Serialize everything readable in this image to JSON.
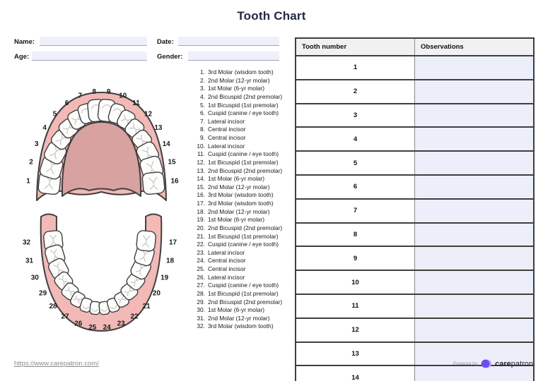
{
  "title": "Tooth Chart",
  "form": {
    "name_label": "Name:",
    "name_value": "",
    "date_label": "Date:",
    "date_value": "",
    "age_label": "Age:",
    "age_value": "",
    "gender_label": "Gender:",
    "gender_value": ""
  },
  "diagrams": {
    "upper_arch_numbers": [
      "1",
      "2",
      "3",
      "4",
      "5",
      "6",
      "7",
      "8",
      "9",
      "10",
      "11",
      "12",
      "13",
      "14",
      "15",
      "16"
    ],
    "lower_arch_numbers": [
      "32",
      "31",
      "30",
      "29",
      "28",
      "27",
      "26",
      "25",
      "24",
      "23",
      "22",
      "21",
      "20",
      "19",
      "18",
      "17"
    ]
  },
  "tooth_list": [
    {
      "num": "1.",
      "name": "3rd Molar (wisdom tooth)"
    },
    {
      "num": "2.",
      "name": "2nd Molar (12-yr molar)"
    },
    {
      "num": "3.",
      "name": "1st Molar (6-yr molar)"
    },
    {
      "num": "4.",
      "name": "2nd Bicuspid (2nd premolar)"
    },
    {
      "num": "5.",
      "name": "1st Bicuspid (1st premolar)"
    },
    {
      "num": "6.",
      "name": "Cuspid (canine / eye tooth)"
    },
    {
      "num": "7.",
      "name": "Lateral incisor"
    },
    {
      "num": "8.",
      "name": "Central incisor"
    },
    {
      "num": "9.",
      "name": "Central incisor"
    },
    {
      "num": "10.",
      "name": "Lateral incisor"
    },
    {
      "num": "11.",
      "name": "Cuspid (canine / eye tooth)"
    },
    {
      "num": "12.",
      "name": "1st Bicuspid (1st premolar)"
    },
    {
      "num": "13.",
      "name": "2nd Bicuspid (2nd premolar)"
    },
    {
      "num": "14.",
      "name": "1st Molar (6-yr molar)"
    },
    {
      "num": "15.",
      "name": "2nd Molar (12-yr molar)"
    },
    {
      "num": "16.",
      "name": "3rd Molar (wisdom tooth)"
    },
    {
      "num": "17.",
      "name": "3rd Molar (wisdom tooth)"
    },
    {
      "num": "18.",
      "name": "2nd Molar (12-yr molar)"
    },
    {
      "num": "19.",
      "name": "1st Molar (6-yr molar)"
    },
    {
      "num": "20.",
      "name": "2nd Bicuspid (2nd premolar)"
    },
    {
      "num": "21.",
      "name": "1st Bicuspid (1st premolar)"
    },
    {
      "num": "22.",
      "name": "Cuspid (canine / eye tooth)"
    },
    {
      "num": "23.",
      "name": "Lateral incisor"
    },
    {
      "num": "24.",
      "name": "Central incisor"
    },
    {
      "num": "25.",
      "name": "Central incisor"
    },
    {
      "num": "26.",
      "name": "Lateral incisor"
    },
    {
      "num": "27.",
      "name": "Cuspid (canine / eye tooth)"
    },
    {
      "num": "28.",
      "name": "1st Bicuspid (1st premolar)"
    },
    {
      "num": "29.",
      "name": "2nd Bicuspid (2nd premolar)"
    },
    {
      "num": "30.",
      "name": "1st Molar (6-yr molar)"
    },
    {
      "num": "31.",
      "name": "2nd Molar (12-yr molar)"
    },
    {
      "num": "32.",
      "name": "3rd Molar (wisdom tooth)"
    }
  ],
  "table": {
    "col_tooth_number": "Tooth number",
    "col_observations": "Observations",
    "rows": [
      {
        "tooth_number": "1",
        "observations": ""
      },
      {
        "tooth_number": "2",
        "observations": ""
      },
      {
        "tooth_number": "3",
        "observations": ""
      },
      {
        "tooth_number": "4",
        "observations": ""
      },
      {
        "tooth_number": "5",
        "observations": ""
      },
      {
        "tooth_number": "6",
        "observations": ""
      },
      {
        "tooth_number": "7",
        "observations": ""
      },
      {
        "tooth_number": "8",
        "observations": ""
      },
      {
        "tooth_number": "9",
        "observations": ""
      },
      {
        "tooth_number": "10",
        "observations": ""
      },
      {
        "tooth_number": "11",
        "observations": ""
      },
      {
        "tooth_number": "12",
        "observations": ""
      },
      {
        "tooth_number": "13",
        "observations": ""
      },
      {
        "tooth_number": "14",
        "observations": ""
      }
    ]
  },
  "footer": {
    "url": "https://www.carepatron.com/",
    "powered_by": "Powered by",
    "brand_care": "care",
    "brand_patron": "patron"
  },
  "colors": {
    "accent_navy": "#222845",
    "gum_light": "#f2b9b7",
    "gum_dark": "#d8a2a0",
    "tooth_fill": "#fdfdfb",
    "tooth_stroke": "#3f3f3f",
    "crack_gray": "#c4c4c4",
    "field_fill": "#eef0fb",
    "observation_fill": "#eceef9",
    "brand_purple": "#6d4ef0",
    "brand_purple_light": "#b9a7f7"
  }
}
